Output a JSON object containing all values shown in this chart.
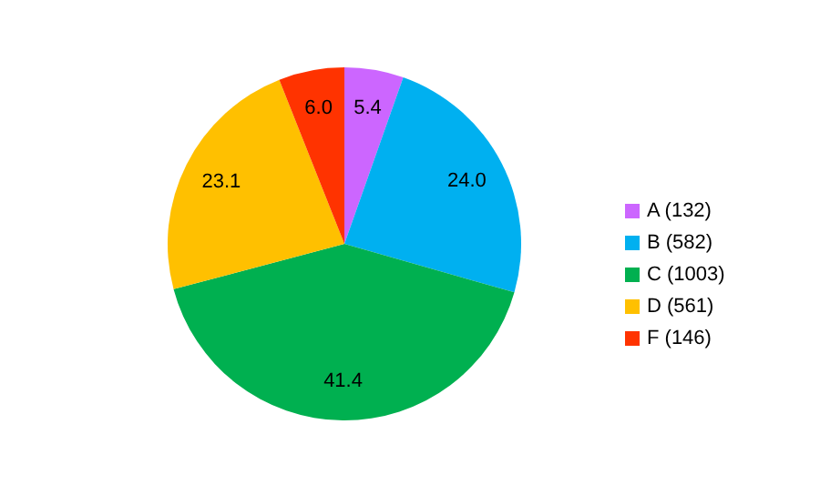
{
  "chart_data": {
    "type": "pie",
    "categories": [
      "A (132)",
      "B (582)",
      "C (1003)",
      "D (561)",
      "F (146)"
    ],
    "values": [
      5.4,
      24.0,
      41.4,
      23.1,
      6.0
    ],
    "value_labels": [
      "5.4",
      "24.0",
      "41.4",
      "23.1",
      "6.0"
    ],
    "colors": [
      "#cc66ff",
      "#00b0f0",
      "#00b050",
      "#ffc000",
      "#ff3300"
    ],
    "legend": "right"
  }
}
